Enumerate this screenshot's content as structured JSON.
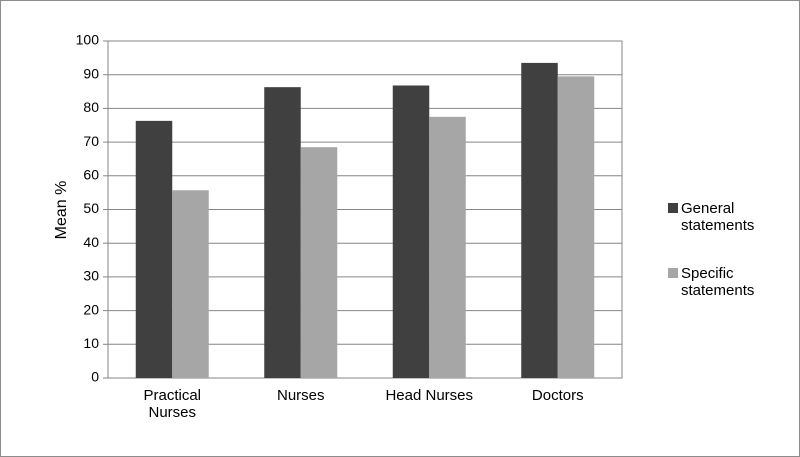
{
  "chart_data": {
    "type": "bar",
    "y_label": "Mean %",
    "categories": [
      "Practical Nurses",
      "Nurses",
      "Head Nurses",
      "Doctors"
    ],
    "series": [
      {
        "name": "General statements",
        "color": "#404040",
        "values": [
          76.3,
          86.3,
          86.8,
          93.5
        ]
      },
      {
        "name": "Specific statements",
        "color": "#a6a6a6",
        "values": [
          55.7,
          68.5,
          77.5,
          89.5
        ]
      }
    ],
    "ylim": [
      0,
      100
    ],
    "yticks": [
      0,
      10,
      20,
      30,
      40,
      50,
      60,
      70,
      80,
      90,
      100
    ],
    "grid": true,
    "legend": "right"
  }
}
